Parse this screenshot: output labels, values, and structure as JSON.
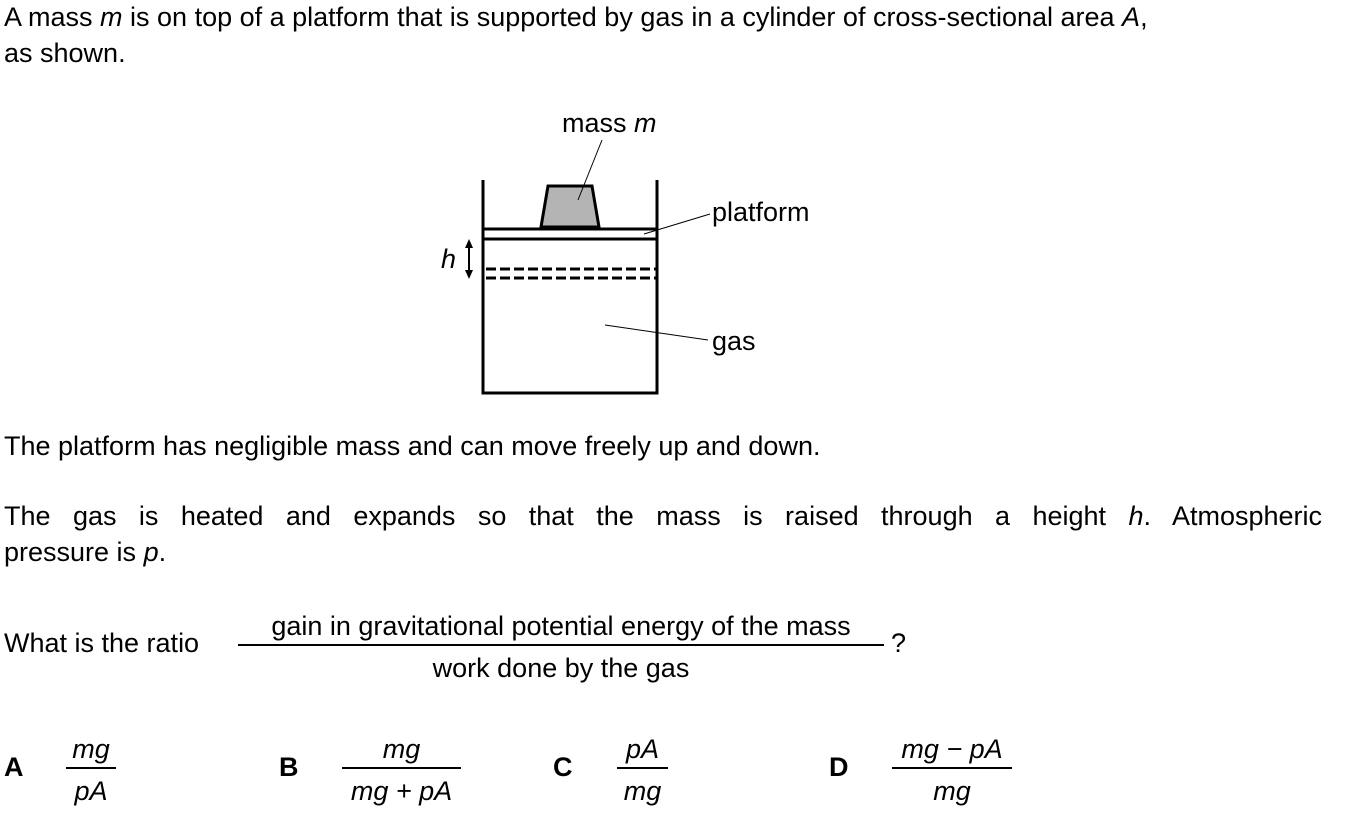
{
  "intro": {
    "line1_pre": "A mass ",
    "line1_m": "m",
    "line1_mid": " is on top of a platform that is supported by gas in a cylinder of cross-sectional area ",
    "line1_A": "A",
    "line1_post": ",",
    "line2": "as shown."
  },
  "diagram": {
    "mass_label": "mass ",
    "mass_var": "m",
    "platform_label": "platform",
    "gas_label": "gas",
    "h_label": "h"
  },
  "para1": "The platform has negligible mass and can move freely up and down.",
  "para2": {
    "pre": "The gas is heated and expands so that the mass is raised through a height ",
    "h": "h",
    "post": ". Atmospheric",
    "line2_pre": "pressure is ",
    "p": "p",
    "line2_post": "."
  },
  "question": {
    "lead": "What is the ratio",
    "numerator": "gain in gravitational potential energy of the mass",
    "denominator": "work done by the gas",
    "qmark": "?"
  },
  "options": [
    {
      "letter": "A",
      "num": "mg",
      "den": "pA"
    },
    {
      "letter": "B",
      "num": "mg",
      "den": "mg + pA"
    },
    {
      "letter": "C",
      "num": "pA",
      "den": "mg"
    },
    {
      "letter": "D",
      "num": "mg − pA",
      "den": "mg"
    }
  ]
}
